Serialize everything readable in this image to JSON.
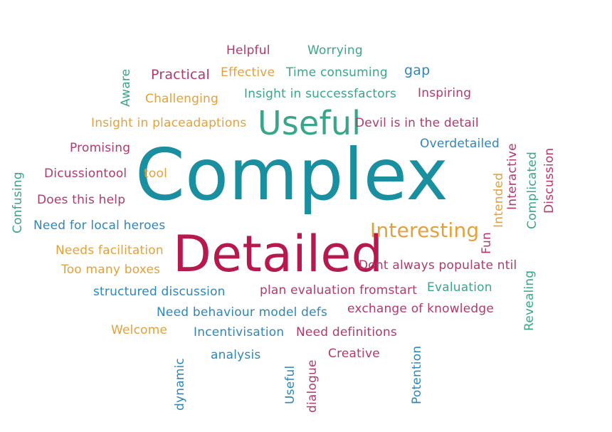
{
  "palette": {
    "teal": "#1a8fa0",
    "green": "#3aa58a",
    "magenta": "#b03a6e",
    "crimson": "#b5194f",
    "orange": "#e3a13b",
    "blue": "#2f86b8",
    "olive": "#8fa83a"
  },
  "words": [
    {
      "id": "word-complex",
      "text": "Complex",
      "color": "#1a8fa0"
    },
    {
      "id": "word-detailed",
      "text": "Detailed",
      "color": "#b5194f"
    },
    {
      "id": "word-useful",
      "text": "Useful",
      "color": "#3aa58a"
    },
    {
      "id": "word-interesting",
      "text": "Interesting",
      "color": "#e3a13b"
    },
    {
      "id": "word-helpful",
      "text": "Helpful",
      "color": "#b03a6e"
    },
    {
      "id": "word-worrying",
      "text": "Worrying",
      "color": "#3aa58a"
    },
    {
      "id": "word-practical",
      "text": "Practical",
      "color": "#b03a6e"
    },
    {
      "id": "word-effective",
      "text": "Effective",
      "color": "#e3a13b"
    },
    {
      "id": "word-time-consuming",
      "text": "Time consuming",
      "color": "#3aa58a"
    },
    {
      "id": "word-gap",
      "text": "gap",
      "color": "#2f86b8"
    },
    {
      "id": "word-challenging",
      "text": "Challenging",
      "color": "#e3a13b"
    },
    {
      "id": "word-insight-in-successfactors",
      "text": "Insight in successfactors",
      "color": "#3aa58a"
    },
    {
      "id": "word-inspiring",
      "text": "Inspiring",
      "color": "#b03a6e"
    },
    {
      "id": "word-insight-in-placeadaptions",
      "text": "Insight in placeadaptions",
      "color": "#e3a13b"
    },
    {
      "id": "word-devil-is-in-the-detail",
      "text": "Devil is in the detail",
      "color": "#b03a6e"
    },
    {
      "id": "word-promising",
      "text": "Promising",
      "color": "#b03a6e"
    },
    {
      "id": "word-overdetailed",
      "text": "Overdetailed",
      "color": "#2f86b8"
    },
    {
      "id": "word-discussiontool",
      "text": "Dicussiontool",
      "color": "#b03a6e"
    },
    {
      "id": "word-tool",
      "text": "tool",
      "color": "#e3a13b"
    },
    {
      "id": "word-does-this-help",
      "text": "Does this help",
      "color": "#b03a6e"
    },
    {
      "id": "word-need-for-local-heroes",
      "text": "Need for local heroes",
      "color": "#2f86b8"
    },
    {
      "id": "word-needs-facilitation",
      "text": "Needs facilitation",
      "color": "#e3a13b"
    },
    {
      "id": "word-too-many-boxes",
      "text": "Too many boxes",
      "color": "#e3a13b"
    },
    {
      "id": "word-dont-always-populate",
      "text": "Dont always populate ntil",
      "color": "#b03a6e"
    },
    {
      "id": "word-structured-discussion",
      "text": "structured discussion",
      "color": "#2f86b8"
    },
    {
      "id": "word-plan-evaluation",
      "text": "plan evaluation fromstart",
      "color": "#b03a6e"
    },
    {
      "id": "word-evaluation",
      "text": "Evaluation",
      "color": "#3aa58a"
    },
    {
      "id": "word-need-behaviour-model-defs",
      "text": "Need behaviour model defs",
      "color": "#2f86b8"
    },
    {
      "id": "word-exchange-of-knowledge",
      "text": "exchange of knowledge",
      "color": "#b03a6e"
    },
    {
      "id": "word-welcome",
      "text": "Welcome",
      "color": "#e3a13b"
    },
    {
      "id": "word-incentivisation",
      "text": "Incentivisation",
      "color": "#2f86b8"
    },
    {
      "id": "word-need-definitions",
      "text": "Need definitions",
      "color": "#b03a6e"
    },
    {
      "id": "word-analysis",
      "text": "analysis",
      "color": "#2f86b8"
    },
    {
      "id": "word-creative",
      "text": "Creative",
      "color": "#b03a6e"
    },
    {
      "id": "word-aware",
      "text": "Aware",
      "color": "#3aa58a"
    },
    {
      "id": "word-confusing",
      "text": "Confusing",
      "color": "#3aa58a"
    },
    {
      "id": "word-interactive",
      "text": "Interactive",
      "color": "#b03a6e"
    },
    {
      "id": "word-intended",
      "text": "Intended",
      "color": "#e3a13b"
    },
    {
      "id": "word-fun",
      "text": "Fun",
      "color": "#b03a6e"
    },
    {
      "id": "word-complicated",
      "text": "Complicated",
      "color": "#3aa58a"
    },
    {
      "id": "word-discussion",
      "text": "Discussion",
      "color": "#b03a6e"
    },
    {
      "id": "word-revealing",
      "text": "Revealing",
      "color": "#3aa58a"
    },
    {
      "id": "word-dynamic",
      "text": "dynamic",
      "color": "#2f86b8"
    },
    {
      "id": "word-useful-vertical",
      "text": "Useful",
      "color": "#2f86b8"
    },
    {
      "id": "word-dialogue",
      "text": "dialogue",
      "color": "#b03a6e"
    },
    {
      "id": "word-potention",
      "text": "Potention",
      "color": "#2f86b8"
    }
  ]
}
